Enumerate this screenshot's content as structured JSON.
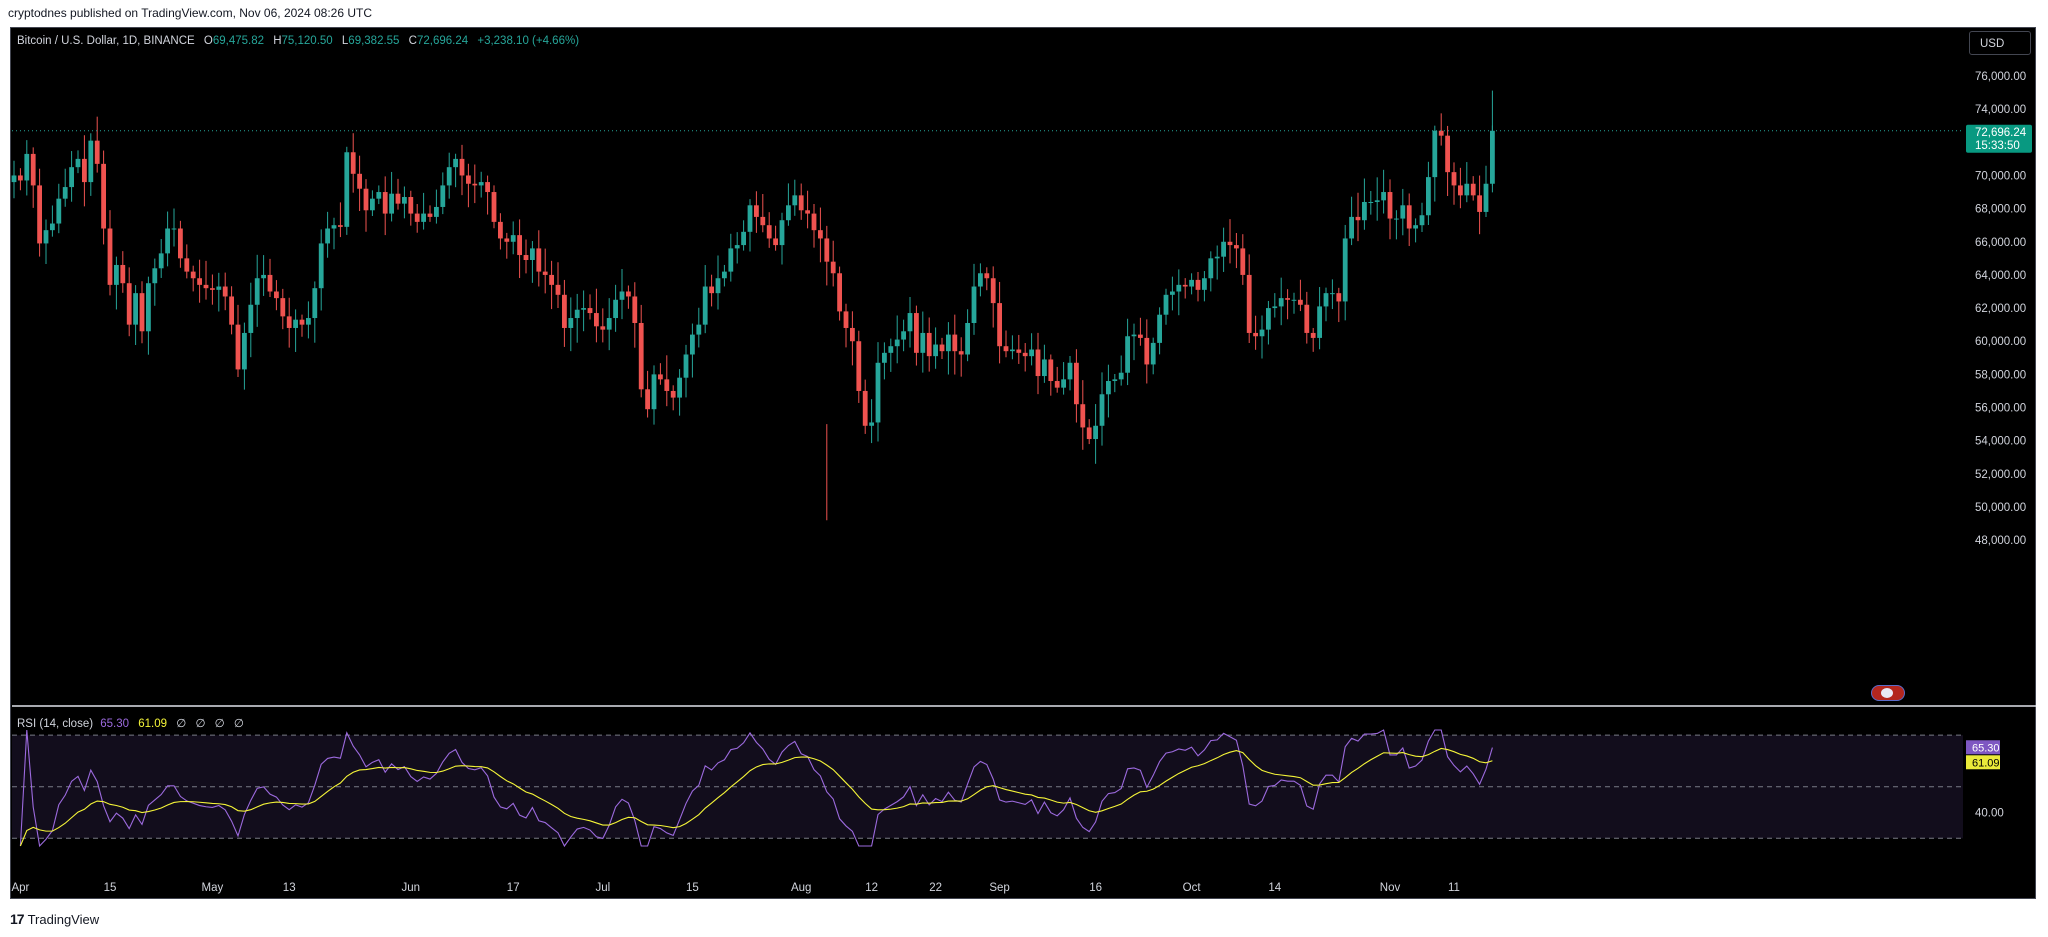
{
  "header": {
    "published": "cryptodnes published on TradingView.com, Nov 06, 2024 08:26 UTC"
  },
  "footer": {
    "brand": "TradingView",
    "logo_glyph": "17"
  },
  "legend": {
    "symbol": "Bitcoin / U.S. Dollar, 1D, BINANCE",
    "o_label": "O",
    "o_value": "69,475.82",
    "h_label": "H",
    "h_value": "75,120.50",
    "l_label": "L",
    "l_value": "69,382.55",
    "c_label": "C",
    "c_value": "72,696.24",
    "change": "+3,238.10 (+4.66%)"
  },
  "currency_button": "USD",
  "rsi_legend": {
    "title": "RSI (14, close)",
    "rsi_value": "65.30",
    "ma_value": "61.09",
    "extra": "∅ ∅ ∅ ∅"
  },
  "price_tag": {
    "price": "72,696.24",
    "countdown": "15:33:50"
  },
  "rsi_tags": {
    "rsi": "65.30",
    "ma": "61.09"
  },
  "colors": {
    "up": "#26a69a",
    "down": "#ef5350",
    "background": "#000000",
    "rsi_line": "#9c6ade",
    "rsi_ma": "#f5f538",
    "text": "#d1d4dc",
    "last_price_tag": "#089981"
  },
  "chart_data": {
    "type": "candlestick",
    "title": "Bitcoin / U.S. Dollar, 1D, BINANCE",
    "y_ticks": [
      "76,000.00",
      "74,000.00",
      "72,000.00",
      "70,000.00",
      "68,000.00",
      "66,000.00",
      "64,000.00",
      "62,000.00",
      "60,000.00",
      "58,000.00",
      "56,000.00",
      "54,000.00",
      "52,000.00",
      "50,000.00",
      "48,000.00"
    ],
    "y_tick_values": [
      76000,
      74000,
      72000,
      70000,
      68000,
      66000,
      64000,
      62000,
      60000,
      58000,
      56000,
      54000,
      52000,
      50000,
      48000
    ],
    "ylim": [
      47000,
      77500
    ],
    "x_ticks": [
      "Apr",
      "15",
      "May",
      "13",
      "Jun",
      "17",
      "Jul",
      "15",
      "Aug",
      "12",
      "22",
      "Sep",
      "16",
      "Oct",
      "14",
      "Nov",
      "11"
    ],
    "x_tick_dates": [
      "2024-04-01",
      "2024-04-15",
      "2024-05-01",
      "2024-05-13",
      "2024-06-01",
      "2024-06-17",
      "2024-07-01",
      "2024-07-15",
      "2024-08-01",
      "2024-08-12",
      "2024-08-22",
      "2024-09-01",
      "2024-09-16",
      "2024-10-01",
      "2024-10-14",
      "2024-11-01",
      "2024-11-11"
    ],
    "start_date": "2024-03-31",
    "closes": [
      70000,
      69700,
      71300,
      69400,
      65900,
      66700,
      67100,
      68600,
      69300,
      70500,
      71000,
      69600,
      72100,
      70700,
      66800,
      63400,
      64600,
      63500,
      61000,
      62900,
      60600,
      63500,
      64400,
      65300,
      66800,
      66800,
      65000,
      64200,
      63800,
      63400,
      63200,
      63100,
      63300,
      62700,
      61000,
      58300,
      60500,
      62200,
      63800,
      64000,
      63000,
      62600,
      61500,
      60800,
      61300,
      61000,
      61400,
      63200,
      65900,
      66800,
      67000,
      66900,
      71400,
      70100,
      69200,
      67900,
      68600,
      69000,
      67700,
      68900,
      68300,
      68700,
      67700,
      67200,
      67700,
      67500,
      68100,
      69400,
      70500,
      71000,
      70000,
      69500,
      69400,
      69600,
      69000,
      67200,
      66200,
      66000,
      66400,
      65200,
      64900,
      65600,
      64200,
      64000,
      63400,
      62800,
      60800,
      61400,
      61900,
      62000,
      61700,
      60900,
      60700,
      61400,
      62500,
      63000,
      62700,
      61100,
      57100,
      55900,
      58000,
      57700,
      57000,
      56600,
      57800,
      59200,
      60400,
      61000,
      63300,
      62900,
      63800,
      64200,
      65600,
      65800,
      66600,
      68200,
      67500,
      67000,
      66200,
      65800,
      67300,
      68200,
      68800,
      67900,
      67700,
      66700,
      66200,
      64800,
      64100,
      61800,
      60800,
      60000,
      57000,
      54900,
      55100,
      58700,
      59300,
      59700,
      60100,
      60600,
      61700,
      59300,
      60500,
      59100,
      59800,
      59400,
      60400,
      59400,
      59200,
      61100,
      63300,
      64100,
      63800,
      62300,
      59700,
      59400,
      59500,
      59300,
      59100,
      59500,
      57900,
      58900,
      57600,
      57200,
      57700,
      58700,
      56200,
      54800,
      54100,
      54900,
      56800,
      57600,
      57700,
      58100,
      60300,
      60400,
      60200,
      58600,
      59900,
      61600,
      62800,
      63000,
      63400,
      63300,
      63700,
      63100,
      63800,
      65000,
      65100,
      66000,
      65800,
      65600,
      64000,
      60500,
      60300,
      60700,
      62000,
      62100,
      62600,
      62500,
      62500,
      62200,
      60500,
      60200,
      62100,
      62900,
      62900,
      62400,
      66200,
      67500,
      67300,
      68400,
      68400,
      68500,
      69000,
      67400,
      67400,
      68200,
      66800,
      67000,
      67600,
      69900,
      72700,
      72400,
      70200,
      69400,
      68800,
      69500,
      68800,
      67800,
      69500,
      72696
    ],
    "note": "closes are estimated daily closing prices (USD), one per trading day starting at start_date",
    "last_price": 72696.24,
    "rsi": {
      "title": "RSI (14, close)",
      "levels": [
        70,
        50,
        30
      ],
      "y_ticks": [
        "40.00"
      ],
      "ylim": [
        25,
        75
      ],
      "current": 65.3,
      "ma_current": 61.09
    }
  }
}
